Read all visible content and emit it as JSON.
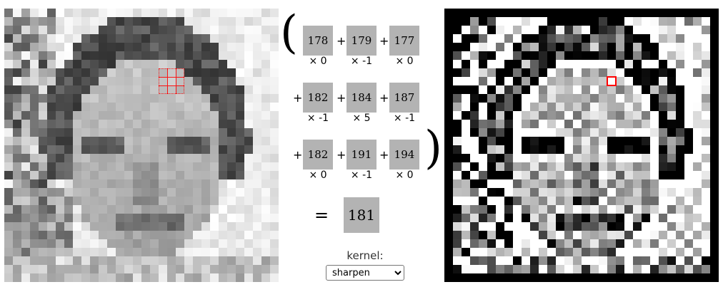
{
  "equation": {
    "rows": [
      {
        "leading_plus": "",
        "cells": [
          "178",
          "179",
          "177"
        ],
        "weights": [
          "× 0",
          "× -1",
          "× 0"
        ]
      },
      {
        "leading_plus": "+",
        "cells": [
          "182",
          "184",
          "187"
        ],
        "weights": [
          "× -1",
          "× 5",
          "× -1"
        ]
      },
      {
        "leading_plus": "+",
        "cells": [
          "182",
          "191",
          "194"
        ],
        "weights": [
          "× 0",
          "× -1",
          "× 0"
        ]
      }
    ],
    "plus": "+",
    "paren_open": "(",
    "paren_close": ")",
    "equals": "=",
    "result": "181"
  },
  "kernel": {
    "label": "kernel:",
    "selected": "sharpen",
    "options": [
      "sharpen"
    ]
  },
  "colors": {
    "cell_background": "#b3b3b3",
    "highlight": "#ff0000",
    "output_border": "#000000"
  },
  "icons": {
    "select_arrow": "chevron-down-icon"
  }
}
